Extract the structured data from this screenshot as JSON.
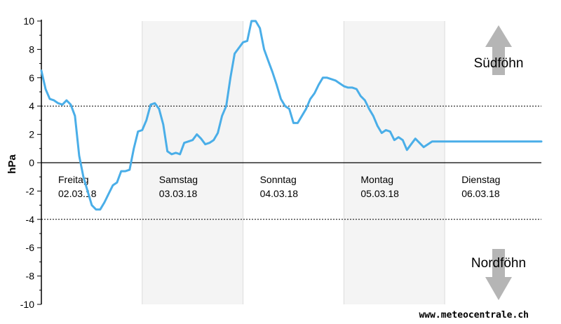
{
  "chart_data": {
    "type": "line",
    "ylabel": "hPa",
    "ylim": [
      -10,
      10
    ],
    "yticks": [
      "10",
      "8",
      "6",
      "4",
      "2",
      "0",
      "-2",
      "-4",
      "-6",
      "-8",
      "-10"
    ],
    "reference_lines": [
      4,
      -4
    ],
    "x_unit": "hours since start of Freitag 02.03.18",
    "xlim": [
      0,
      119
    ],
    "days": [
      {
        "name": "Freitag",
        "date": "02.03.18"
      },
      {
        "name": "Samstag",
        "date": "03.03.18"
      },
      {
        "name": "Sonntag",
        "date": "04.03.18"
      },
      {
        "name": "Montag",
        "date": "05.03.18"
      },
      {
        "name": "Dienstag",
        "date": "06.03.18"
      }
    ],
    "series": [
      {
        "color": "#4aaee8",
        "x": [
          0,
          1,
          2,
          3,
          4,
          5,
          6,
          7,
          8,
          9,
          10,
          11,
          12,
          13,
          14,
          15,
          16,
          17,
          18,
          19,
          20,
          21,
          22,
          23,
          24,
          25,
          26,
          27,
          28,
          29,
          30,
          31,
          32,
          33,
          34,
          35,
          36,
          37,
          38,
          39,
          40,
          41,
          42,
          43,
          44,
          45,
          46,
          47,
          48,
          49,
          50,
          51,
          52,
          53,
          54,
          55,
          56,
          57,
          58,
          59,
          60,
          61,
          62,
          63,
          64,
          65,
          66,
          67,
          68,
          69,
          70,
          71,
          72,
          73,
          74,
          75,
          76,
          77,
          78,
          79,
          80,
          81,
          82,
          83,
          84,
          85,
          86,
          87,
          88,
          89,
          90,
          91,
          92,
          93,
          94,
          95,
          96,
          97,
          98,
          99,
          100,
          101,
          102,
          103,
          104,
          105,
          106,
          107,
          108,
          109,
          110,
          111,
          112,
          113,
          114,
          115,
          116,
          117,
          118,
          119
        ],
        "values": [
          6.5,
          5.2,
          4.5,
          4.4,
          4.2,
          4.1,
          4.4,
          4.1,
          3.3,
          0.5,
          -1.0,
          -2.0,
          -3.0,
          -3.3,
          -3.3,
          -2.8,
          -2.2,
          -1.6,
          -1.4,
          -0.6,
          -0.6,
          -0.5,
          1.0,
          2.2,
          2.3,
          3.0,
          4.1,
          4.2,
          3.8,
          2.7,
          0.8,
          0.6,
          0.7,
          0.6,
          1.4,
          1.5,
          1.6,
          2.0,
          1.7,
          1.3,
          1.4,
          1.6,
          2.1,
          3.3,
          4.0,
          6.0,
          7.7,
          8.1,
          8.5,
          8.6,
          10.0,
          10.0,
          9.5,
          8.0,
          7.2,
          6.4,
          5.5,
          4.5,
          4.0,
          3.8,
          2.8,
          2.8,
          3.3,
          3.8,
          4.5,
          4.9,
          5.5,
          6.0,
          6.0,
          5.9,
          5.8,
          5.6,
          5.4,
          5.3,
          5.3,
          5.2,
          4.7,
          4.4,
          3.8,
          3.3,
          2.6,
          2.1,
          2.3,
          2.2,
          1.6,
          1.8,
          1.6,
          0.9,
          1.3,
          1.7,
          1.4,
          1.1,
          1.3,
          1.5,
          1.5,
          1.5,
          1.5,
          1.5,
          1.5,
          1.5,
          1.5,
          1.5,
          1.5,
          1.5,
          1.5,
          1.5,
          1.5,
          1.5,
          1.5,
          1.5,
          1.5,
          1.5,
          1.5,
          1.5,
          1.5,
          1.5,
          1.5,
          1.5,
          1.5,
          1.5
        ]
      }
    ],
    "annotations": {
      "upper": "Südföhn",
      "lower": "Nordföhn"
    },
    "grid": true
  },
  "credit": "www.meteocentrale.ch",
  "colors": {
    "line": "#4aaee8",
    "band": "#f4f4f4",
    "arrow": "#b5b5b5",
    "gridline": "#dcdcdc"
  }
}
